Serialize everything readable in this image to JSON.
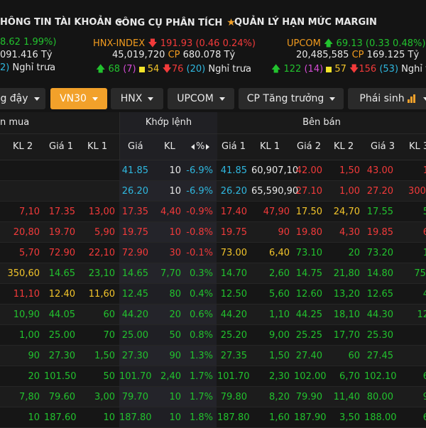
{
  "menu": {
    "account": "HÔNG TIN TÀI KHOẢN",
    "tools": "CÔNG CỤ PHÂN TÍCH",
    "margin": "QUẢN LÝ HẠN MỨC MARGIN"
  },
  "indices": {
    "left": {
      "change": "8.62 1.99%)",
      "value": "091.416 Tỷ",
      "breadth_tail": "2)",
      "status": "Nghỉ trưa"
    },
    "hnx": {
      "name": "HNX-INDEX",
      "point": "191.93",
      "change": "(0.46 0.24%)",
      "volume": "45,019,720",
      "cp_label": "CP",
      "value": "680.078 Tỷ",
      "up": "68",
      "ref": "(7)",
      "flat": "54",
      "down": "76",
      "floor": "(20)",
      "status": "Nghỉ trưa"
    },
    "upcom": {
      "name": "UPCOM",
      "point": "69.13",
      "change": "(0.33 0.48%)",
      "volume": "20,485,585",
      "cp_label": "CP",
      "value": "169.125 Tỷ",
      "up": "122",
      "ref": "(14)",
      "flat": "57",
      "down": "156",
      "floor": "(53)",
      "status": "Nghỉ trư"
    }
  },
  "tabs": [
    {
      "label": "g đậy"
    },
    {
      "label": "VN30"
    },
    {
      "label": "HNX"
    },
    {
      "label": "UPCOM"
    },
    {
      "label": "CP Tăng trưởng"
    },
    {
      "label": "Phái sinh"
    }
  ],
  "groups": {
    "buy": "n mua",
    "match": "Khớp lệnh",
    "sell": "Bên bán"
  },
  "headers": {
    "kl2": "KL 2",
    "gia1": "Giá 1",
    "kl1": "KL 1",
    "mgia": "Giá",
    "mkl": "KL",
    "mpct": "%",
    "sgia1": "Giá 1",
    "skl1": "KL 1",
    "sgia2": "Giá 2",
    "skl2": "KL 2",
    "sgia3": "Giá 3",
    "skl3": "KL 3"
  },
  "rows": [
    {
      "c": [
        "",
        "",
        "",
        "41.85",
        "10",
        "-6.9%",
        "41.85",
        "60,907,10",
        "42.00",
        "1,50",
        "43.00",
        "1"
      ],
      "k": [
        "w",
        "w",
        "w",
        "c",
        "w",
        "c",
        "c",
        "w",
        "r",
        "r",
        "r",
        "r"
      ]
    },
    {
      "c": [
        "",
        "",
        "",
        "26.20",
        "10",
        "-6.9%",
        "26.20",
        "65,590,90",
        "27.10",
        "1,00",
        "27.20",
        "300,"
      ],
      "k": [
        "w",
        "w",
        "w",
        "c",
        "w",
        "c",
        "c",
        "w",
        "r",
        "r",
        "r",
        "r"
      ]
    },
    {
      "c": [
        "7,10",
        "17.35",
        "13,00",
        "17.35",
        "4,40",
        "-0.9%",
        "17.40",
        "47,90",
        "17.50",
        "24,70",
        "17.55",
        "5"
      ],
      "k": [
        "r",
        "r",
        "r",
        "r",
        "r",
        "r",
        "r",
        "r",
        "y",
        "y",
        "g",
        "g"
      ]
    },
    {
      "c": [
        "20,80",
        "19.70",
        "5,90",
        "19.75",
        "10",
        "-0.8%",
        "19.75",
        "90",
        "19.80",
        "4,30",
        "19.85",
        "6"
      ],
      "k": [
        "r",
        "r",
        "r",
        "r",
        "r",
        "r",
        "r",
        "r",
        "r",
        "r",
        "r",
        "r"
      ]
    },
    {
      "c": [
        "5,70",
        "72.90",
        "22,10",
        "72.90",
        "30",
        "-0.1%",
        "73.00",
        "6,40",
        "73.10",
        "20",
        "73.20",
        "1"
      ],
      "k": [
        "r",
        "r",
        "r",
        "r",
        "r",
        "r",
        "y",
        "y",
        "g",
        "g",
        "g",
        "g"
      ]
    },
    {
      "c": [
        "350,60",
        "14.65",
        "23,10",
        "14.65",
        "7,70",
        "0.3%",
        "14.70",
        "2,60",
        "14.75",
        "21,80",
        "14.80",
        "75,"
      ],
      "k": [
        "y",
        "g",
        "g",
        "g",
        "g",
        "g",
        "g",
        "g",
        "g",
        "g",
        "g",
        "g"
      ]
    },
    {
      "c": [
        "11,10",
        "12.40",
        "11,60",
        "12.45",
        "80",
        "0.4%",
        "12.50",
        "5,60",
        "12.60",
        "13,20",
        "12.65",
        "4"
      ],
      "k": [
        "r",
        "y",
        "y",
        "g",
        "g",
        "g",
        "g",
        "g",
        "g",
        "g",
        "g",
        "g"
      ]
    },
    {
      "c": [
        "10,90",
        "44.05",
        "60",
        "44.20",
        "20",
        "0.6%",
        "44.20",
        "1,10",
        "44.25",
        "18,10",
        "44.30",
        "12"
      ],
      "k": [
        "g",
        "g",
        "g",
        "g",
        "g",
        "g",
        "g",
        "g",
        "g",
        "g",
        "g",
        "g"
      ]
    },
    {
      "c": [
        "1,00",
        "25.00",
        "70",
        "25.00",
        "50",
        "0.8%",
        "25.20",
        "9,00",
        "25.25",
        "17,70",
        "25.30",
        ""
      ],
      "k": [
        "g",
        "g",
        "g",
        "g",
        "g",
        "g",
        "g",
        "g",
        "g",
        "g",
        "g",
        "g"
      ]
    },
    {
      "c": [
        "90",
        "27.30",
        "1,50",
        "27.30",
        "90",
        "1.3%",
        "27.35",
        "1,50",
        "27.40",
        "60",
        "27.45",
        ""
      ],
      "k": [
        "g",
        "g",
        "g",
        "g",
        "g",
        "g",
        "g",
        "g",
        "g",
        "g",
        "g",
        "g"
      ]
    },
    {
      "c": [
        "20",
        "101.50",
        "50",
        "101.70",
        "2,40",
        "1.7%",
        "101.70",
        "2,30",
        "102.00",
        "6,70",
        "102.10",
        "6"
      ],
      "k": [
        "g",
        "g",
        "g",
        "g",
        "g",
        "g",
        "g",
        "g",
        "g",
        "g",
        "g",
        "g"
      ]
    },
    {
      "c": [
        "7,80",
        "79.60",
        "3,00",
        "79.70",
        "10",
        "1.7%",
        "79.80",
        "8,20",
        "79.90",
        "11,40",
        "80.00",
        "9"
      ],
      "k": [
        "g",
        "g",
        "g",
        "g",
        "g",
        "g",
        "g",
        "g",
        "g",
        "g",
        "g",
        "g"
      ]
    },
    {
      "c": [
        "10",
        "187.60",
        "10",
        "187.80",
        "10",
        "1.8%",
        "187.80",
        "1,60",
        "187.90",
        "3,50",
        "188.00",
        "6"
      ],
      "k": [
        "g",
        "g",
        "g",
        "g",
        "g",
        "g",
        "g",
        "g",
        "g",
        "g",
        "g",
        "g"
      ]
    }
  ],
  "colors": {
    "green": "#22c22e",
    "red": "#f23a3a",
    "yellow": "#f2c42a",
    "cyan": "#2fb8e0",
    "accent": "#f2a12a"
  }
}
